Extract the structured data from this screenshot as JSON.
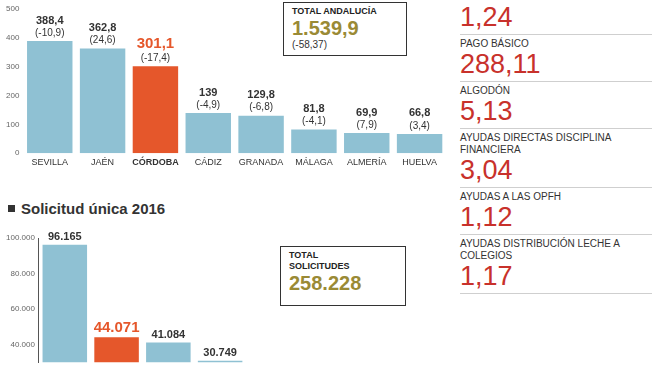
{
  "chart_data": [
    {
      "type": "bar",
      "categories": [
        "SEVILLA",
        "JAÉN",
        "CÓRDOBA",
        "CÁDIZ",
        "GRANADA",
        "MÁLAGA",
        "ALMERÍA",
        "HUELVA"
      ],
      "values": [
        388.4,
        362.8,
        301.1,
        139,
        129.8,
        81.8,
        69.9,
        66.8
      ],
      "value_labels": [
        "388,4",
        "362,8",
        "301,1",
        "139",
        "129,8",
        "81,8",
        "69,9",
        "66,8"
      ],
      "change_labels": [
        "(-10,9)",
        "(24,6)",
        "(-17,4)",
        "(-4,9)",
        "(-6,8)",
        "(-4,1)",
        "(7,9)",
        "(3,4)"
      ],
      "colors": [
        "#8fc1d3",
        "#8fc1d3",
        "#e5572b",
        "#8fc1d3",
        "#8fc1d3",
        "#8fc1d3",
        "#8fc1d3",
        "#8fc1d3"
      ],
      "ylim": [
        0,
        500
      ],
      "yticks": [
        0,
        100,
        200,
        300,
        400,
        500
      ],
      "grid": false,
      "data_labels": true,
      "annotations": [
        {
          "label": "TOTAL ANDALUCÍA",
          "value": "1.539,9",
          "change": "(-58,37)"
        }
      ]
    },
    {
      "type": "bar",
      "title": "Solicitud única 2016",
      "categories": [
        null,
        null,
        null,
        null
      ],
      "values": [
        96165,
        44071,
        41084,
        30749
      ],
      "value_labels": [
        "96.165",
        "44.071",
        "41.084",
        "30.749"
      ],
      "colors": [
        "#8fc1d3",
        "#e5572b",
        "#8fc1d3",
        "#8fc1d3"
      ],
      "ylim": [
        30000,
        100000
      ],
      "yticks": [
        {
          "value": 40000,
          "label": "40.000"
        },
        {
          "value": 60000,
          "label": "60.000"
        },
        {
          "value": 80000,
          "label": "80.000"
        },
        {
          "value": 100000,
          "label": "100.000"
        }
      ],
      "grid": false,
      "data_labels": true,
      "tick_labels": "y",
      "annotations": [
        {
          "label": "TOTAL SOLICITUDES",
          "value": "258.228"
        }
      ]
    }
  ],
  "panel": {
    "items": [
      {
        "label": null,
        "value": "1,24"
      },
      {
        "label": "PAGO BÁSICO",
        "value": "288,11"
      },
      {
        "label": "ALGODÓN",
        "value": "5,13"
      },
      {
        "label": "AYUDAS DIRECTAS DISCIPLINA FINANCIERA",
        "value": "3,04"
      },
      {
        "label": "AYUDAS A LAS OPFH",
        "value": "1,12"
      },
      {
        "label": "AYUDAS DISTRIBUCIÓN LECHE A COLEGIOS",
        "value": "1,17"
      }
    ]
  }
}
